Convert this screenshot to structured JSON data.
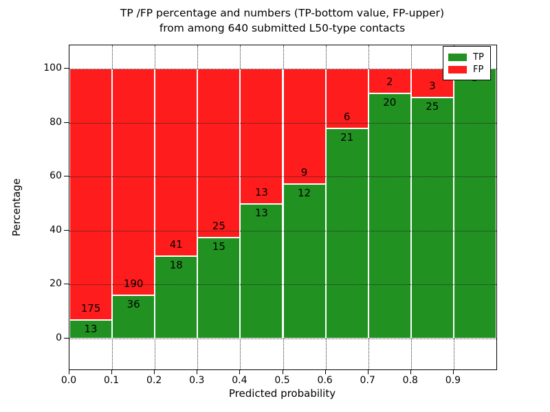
{
  "chart_data": {
    "type": "bar",
    "stacked": true,
    "normalized_to_percent": true,
    "title_line1": "TP /FP percentage and numbers (TP-bottom value, FP-upper)",
    "title_line2": "from among 640 submitted L50-type contacts",
    "xlabel": "Predicted probability",
    "ylabel": "Percentage",
    "total_contacts": 640,
    "bin_width": 0.1,
    "x_bin_starts": [
      0.0,
      0.1,
      0.2,
      0.3,
      0.4,
      0.5,
      0.6,
      0.7,
      0.8,
      0.9
    ],
    "series": [
      {
        "name": "TP",
        "color": "#219221",
        "values": [
          13,
          36,
          18,
          15,
          13,
          12,
          21,
          20,
          25,
          3
        ]
      },
      {
        "name": "FP",
        "color": "#ff1c1c",
        "values": [
          175,
          190,
          41,
          25,
          13,
          9,
          6,
          2,
          3,
          0
        ]
      }
    ],
    "tp_percent": [
      6.9,
      15.9,
      30.5,
      37.5,
      50.0,
      57.1,
      77.8,
      90.9,
      89.3,
      100.0
    ],
    "x_tick_labels": [
      "0.0",
      "0.1",
      "0.2",
      "0.3",
      "0.4",
      "0.5",
      "0.6",
      "0.7",
      "0.8",
      "0.9"
    ],
    "y_tick_labels": [
      "0",
      "20",
      "40",
      "60",
      "80",
      "100"
    ],
    "y_tick_values": [
      0,
      20,
      40,
      60,
      80,
      100
    ],
    "ylim": [
      -11.5,
      108.7
    ],
    "xlim": [
      0.0,
      1.0
    ],
    "grid": "dotted",
    "legend_position": "upper right",
    "legend": [
      {
        "label": "TP",
        "color": "#219221"
      },
      {
        "label": "FP",
        "color": "#ff1c1c"
      }
    ]
  }
}
